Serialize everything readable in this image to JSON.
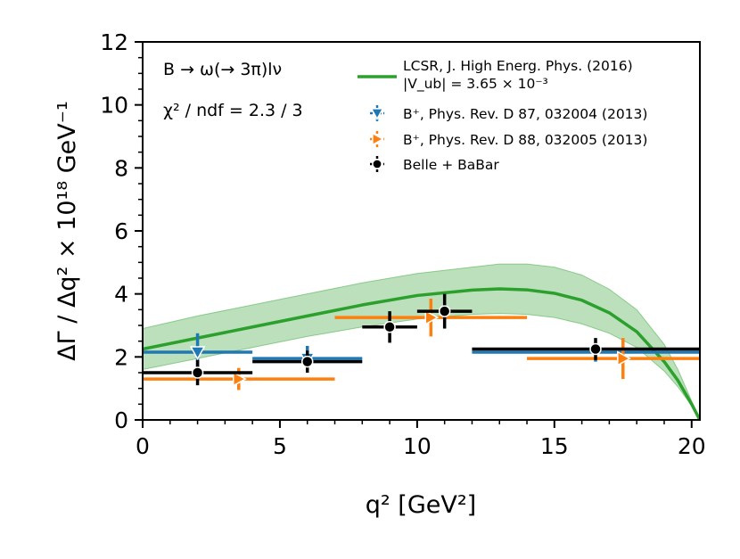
{
  "chart_data": {
    "type": "scatter",
    "xlabel": "q² [GeV²]",
    "ylabel": "ΔΓ / Δq² × 10¹⁸ GeV⁻¹",
    "xlim": [
      0,
      20.3
    ],
    "ylim": [
      0,
      12
    ],
    "x_ticks": [
      0,
      5,
      10,
      15,
      20
    ],
    "y_ticks": [
      0,
      2,
      4,
      6,
      8,
      10,
      12
    ],
    "x_tick_labels": [
      "0",
      "5",
      "10",
      "15",
      "20"
    ],
    "y_tick_labels": [
      "0",
      "2",
      "4",
      "6",
      "8",
      "10",
      "12"
    ],
    "annotations": [
      "B → ω(→ 3π)lν",
      "χ² / ndf = 2.3 / 3"
    ],
    "legend": {
      "placement": "top-right",
      "entries": [
        {
          "label": "LCSR, J. High Energ. Phys. (2016)",
          "label2": "|V_ub| = 3.65 × 10⁻³",
          "color": "#2ca02c",
          "marker": "line"
        },
        {
          "label": "B⁺, Phys. Rev. D 87, 032004 (2013)",
          "color": "#1f77b4",
          "marker": "triangle-down"
        },
        {
          "label": "B⁺, Phys. Rev. D 88, 032005 (2013)",
          "color": "#ff7f0e",
          "marker": "triangle-right"
        },
        {
          "label": "Belle + BaBar",
          "color": "#000000",
          "marker": "circle"
        }
      ]
    },
    "series": [
      {
        "name": "LCSR, J. High Energ. Phys. (2016)",
        "kind": "line-band",
        "color": "#2ca02c",
        "x": [
          0,
          2,
          4,
          6,
          8,
          10,
          12,
          13,
          14,
          15,
          16,
          17,
          18,
          19,
          19.5,
          20,
          20.3
        ],
        "y": [
          2.25,
          2.6,
          2.95,
          3.3,
          3.65,
          3.95,
          4.12,
          4.16,
          4.13,
          4.02,
          3.8,
          3.4,
          2.8,
          1.85,
          1.25,
          0.5,
          0
        ],
        "y_low": [
          1.6,
          1.95,
          2.3,
          2.65,
          2.95,
          3.2,
          3.35,
          3.38,
          3.35,
          3.25,
          3.05,
          2.75,
          2.3,
          1.55,
          1.05,
          0.45,
          0
        ],
        "y_high": [
          2.9,
          3.3,
          3.65,
          4.0,
          4.35,
          4.65,
          4.85,
          4.95,
          4.95,
          4.85,
          4.6,
          4.15,
          3.5,
          2.4,
          1.6,
          0.6,
          0
        ]
      },
      {
        "name": "B⁺, Phys. Rev. D 87, 032004 (2013)",
        "color": "#1f77b4",
        "points": [
          {
            "x": 2,
            "xerr": 2,
            "y": 2.15,
            "yerr": 0.6
          },
          {
            "x": 6,
            "xerr": 2,
            "y": 1.95,
            "yerr": 0.4
          },
          {
            "x": 16.5,
            "xlo": 12,
            "xhi": 20.3,
            "y": 2.15,
            "yerr": 0.3
          }
        ]
      },
      {
        "name": "B⁺, Phys. Rev. D 88, 032005 (2013)",
        "color": "#ff7f0e",
        "points": [
          {
            "x": 3.5,
            "xerr": 3.5,
            "y": 1.3,
            "yerr": 0.35
          },
          {
            "x": 10.5,
            "xerr": 3.5,
            "y": 3.25,
            "yerr": 0.6
          },
          {
            "x": 17.5,
            "xlo": 14,
            "xhi": 20.3,
            "y": 1.95,
            "yerr": 0.65
          }
        ]
      },
      {
        "name": "Belle + BaBar",
        "color": "#000000",
        "points": [
          {
            "x": 2,
            "xerr": 2,
            "y": 1.5,
            "yerr": 0.4
          },
          {
            "x": 6,
            "xerr": 2,
            "y": 1.85,
            "yerr": 0.35
          },
          {
            "x": 9,
            "xerr": 1,
            "y": 2.95,
            "yerr": 0.5
          },
          {
            "x": 11,
            "xerr": 1,
            "y": 3.45,
            "yerr": 0.55
          },
          {
            "x": 16.5,
            "xlo": 12,
            "xhi": 20.3,
            "y": 2.25,
            "yerr": 0.35
          }
        ]
      }
    ]
  }
}
